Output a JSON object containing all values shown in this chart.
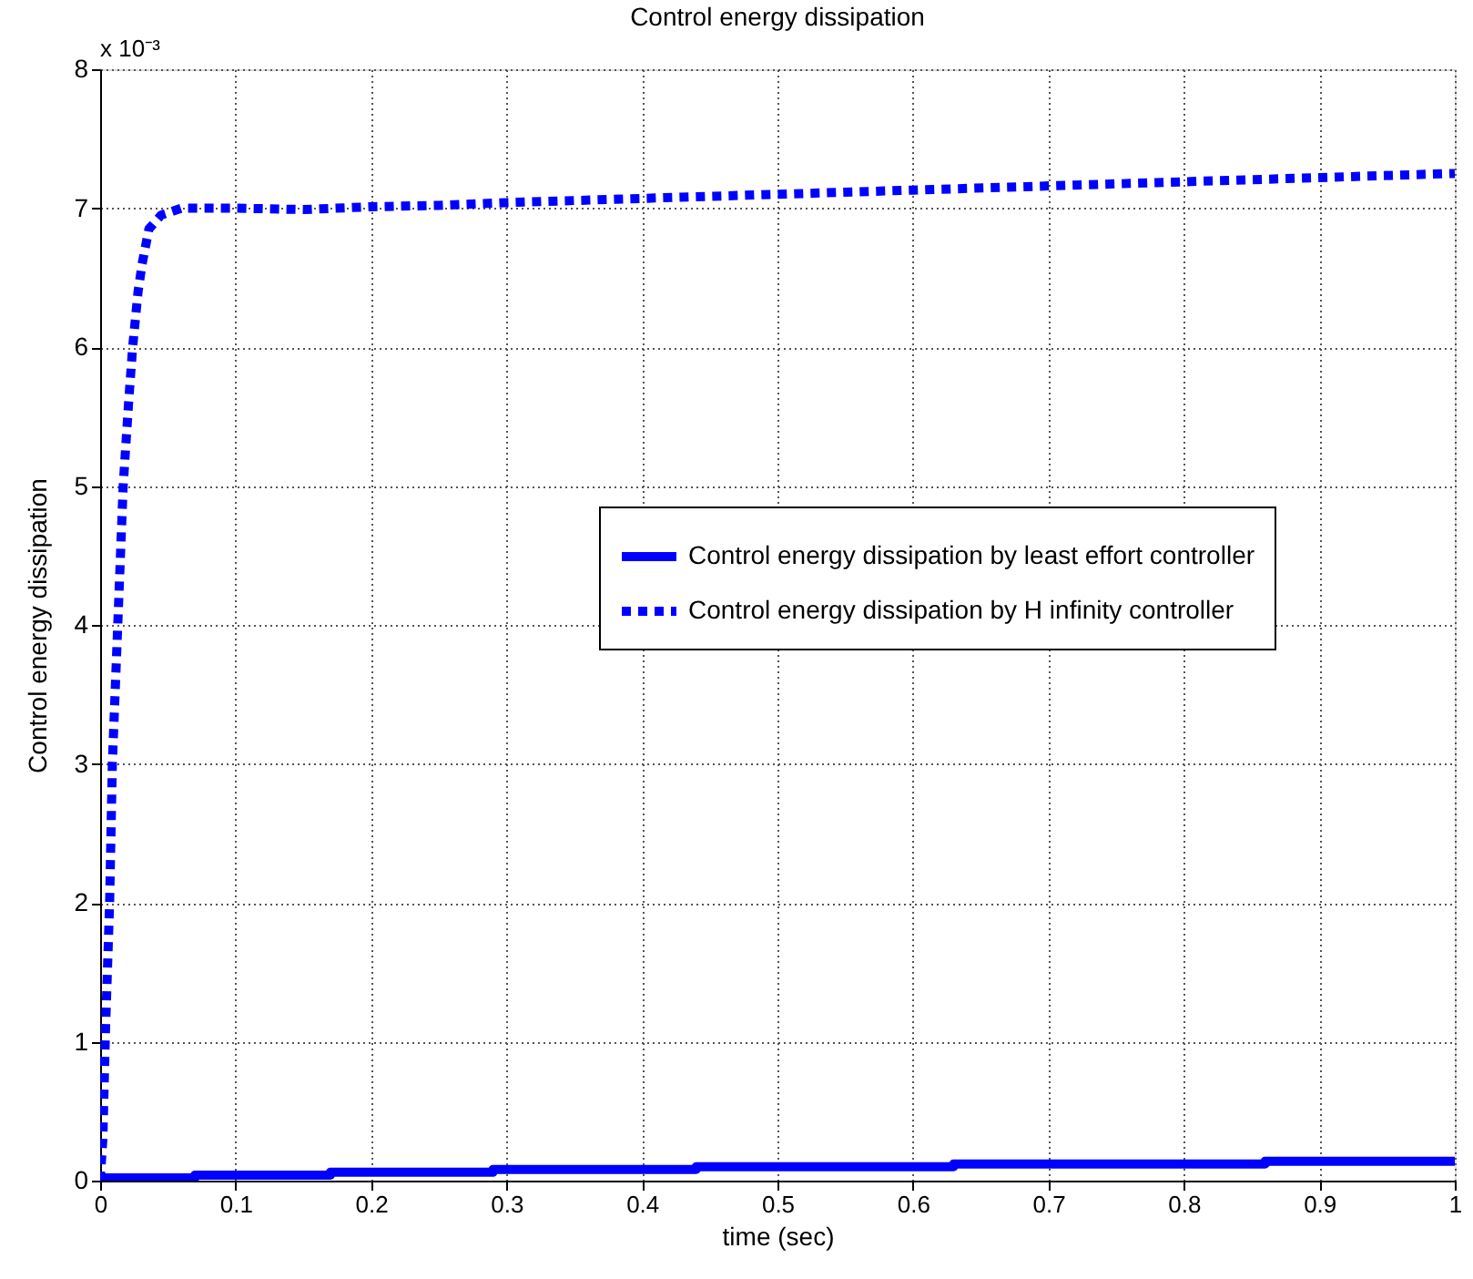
{
  "chart_data": {
    "type": "line",
    "title": "Control energy dissipation",
    "xlabel": "time (sec)",
    "ylabel": "Control energy dissipation",
    "annotations": [
      "x 10⁻³"
    ],
    "xlim": [
      0,
      1
    ],
    "xticks": [
      0,
      0.1,
      0.2,
      0.3,
      0.4,
      0.5,
      0.6,
      0.7,
      0.8,
      0.9,
      1
    ],
    "ylim": [
      0,
      8
    ],
    "yticks": [
      0,
      1,
      2,
      3,
      4,
      5,
      6,
      7,
      8
    ],
    "grid": true,
    "legend": "right",
    "marker": "none",
    "series": [
      {
        "name": "Control energy dissipation by least effort controller",
        "type": "step",
        "line_style": "solid",
        "color": "#0000ff",
        "x": [
          0,
          0.07,
          0.17,
          0.29,
          0.44,
          0.63,
          0.86,
          1.0
        ],
        "values": [
          0.02,
          0.04,
          0.06,
          0.08,
          0.1,
          0.12,
          0.14,
          0.14
        ]
      },
      {
        "name": "Control energy dissipation by H infinity controller",
        "type": "line",
        "line_style": "dotted",
        "color": "#0000ff",
        "x": [
          0,
          0.002,
          0.004,
          0.007,
          0.009,
          0.013,
          0.017,
          0.021,
          0.024,
          0.028,
          0.031,
          0.036,
          0.045,
          0.06,
          0.1,
          0.15,
          0.2,
          0.25,
          0.3,
          0.4,
          0.5,
          0.6,
          0.7,
          0.8,
          0.9,
          1.0
        ],
        "values": [
          0,
          0.3,
          1.1,
          2.0,
          3.0,
          4.0,
          5.0,
          5.6,
          6.0,
          6.4,
          6.6,
          6.85,
          6.95,
          7.0,
          7.0,
          6.99,
          7.01,
          7.02,
          7.04,
          7.07,
          7.1,
          7.13,
          7.16,
          7.19,
          7.22,
          7.25
        ]
      }
    ]
  }
}
